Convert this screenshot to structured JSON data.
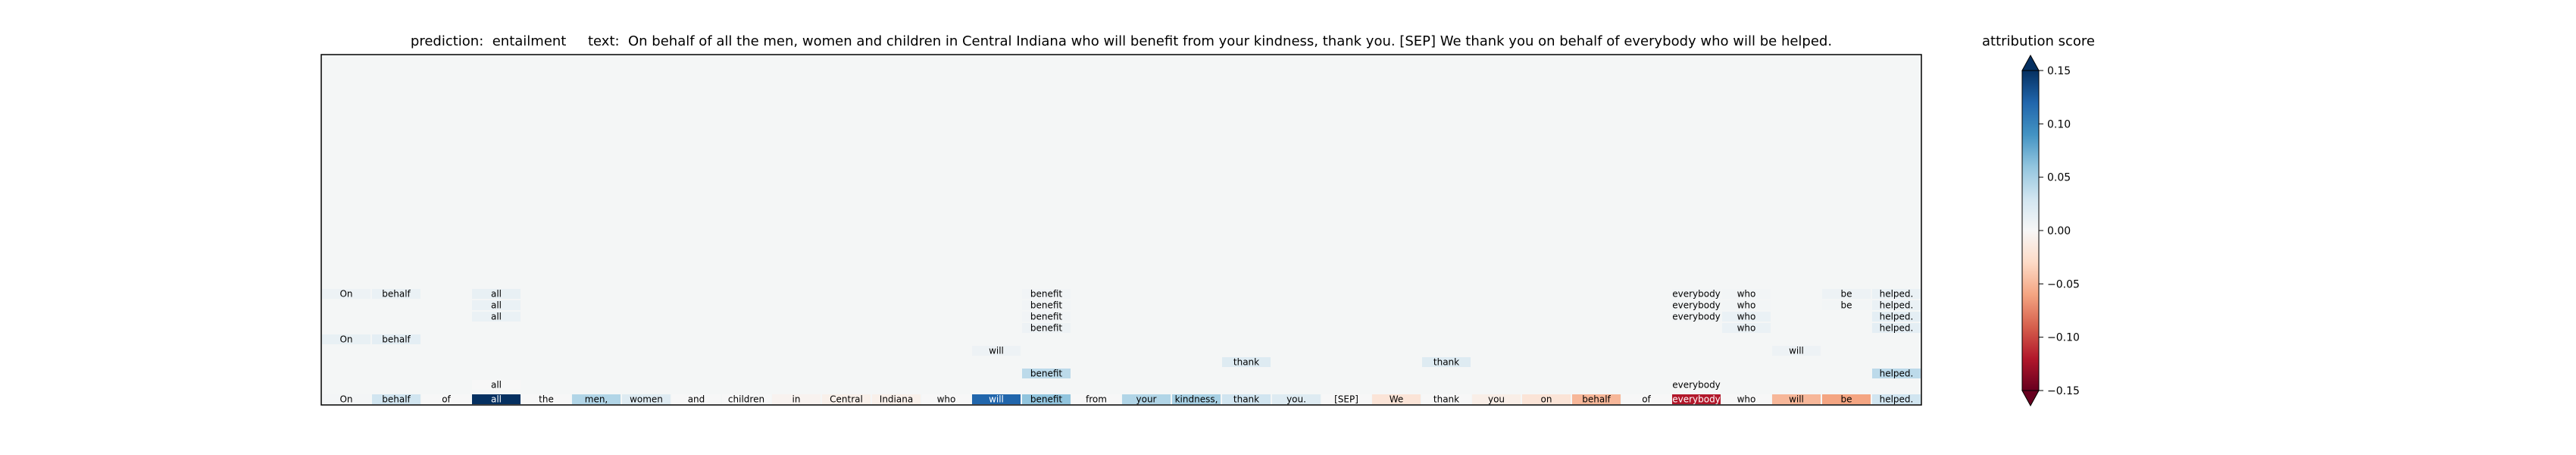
{
  "title": "prediction:  entailment     text:  On behalf of all the men, women and children in Central Indiana who will benefit from your kindness, thank you. [SEP] We thank you on behalf of everybody who will be helped.",
  "colorbar": {
    "label": "attribution score",
    "ticks": [
      "0.15",
      "0.10",
      "0.05",
      "0.00",
      "−0.05",
      "−0.10",
      "−0.15"
    ],
    "range": [
      -0.15,
      0.15
    ],
    "colormap": "RdBu"
  },
  "chart_data": {
    "type": "heatmap",
    "title": "prediction:  entailment     text:  On behalf of all the men, women and children in Central Indiana who will benefit from your kindness, thank you. [SEP] We thank you on behalf of everybody who will be helped.",
    "prediction": "entailment",
    "tokens": [
      "On",
      "behalf",
      "of",
      "all",
      "the",
      "men,",
      "women",
      "and",
      "children",
      "in",
      "Central",
      "Indiana",
      "who",
      "will",
      "benefit",
      "from",
      "your",
      "kindness,",
      "thank",
      "you.",
      "[SEP]",
      "We",
      "thank",
      "you",
      "on",
      "behalf",
      "of",
      "everybody",
      "who",
      "will",
      "be",
      "helped."
    ],
    "scores": [
      0.003,
      0.03,
      0.0,
      0.15,
      0.0,
      0.045,
      0.02,
      0.0,
      0.0,
      -0.005,
      -0.008,
      -0.008,
      0.0,
      0.12,
      0.06,
      0.0,
      0.045,
      0.05,
      0.03,
      0.02,
      0.0,
      -0.02,
      0.0,
      -0.01,
      -0.02,
      -0.05,
      0.0,
      -0.12,
      0.0,
      -0.05,
      -0.06,
      0.03
    ],
    "rows": 12,
    "grid": false,
    "layers": [
      {
        "row": 0,
        "col": 0,
        "text": "On",
        "score": 0.008
      },
      {
        "row": 0,
        "col": 1,
        "text": "behalf",
        "score": 0.01
      },
      {
        "row": 0,
        "col": 3,
        "text": "all",
        "score": 0.012
      },
      {
        "row": 0,
        "col": 14,
        "text": "benefit",
        "score": 0.005
      },
      {
        "row": 0,
        "col": 27,
        "text": "everybody",
        "score": 0.004
      },
      {
        "row": 0,
        "col": 28,
        "text": "who",
        "score": 0.004
      },
      {
        "row": 0,
        "col": 30,
        "text": "be",
        "score": 0.008
      },
      {
        "row": 0,
        "col": 31,
        "text": "helped.",
        "score": 0.01
      },
      {
        "row": 1,
        "col": 3,
        "text": "all",
        "score": 0.01
      },
      {
        "row": 1,
        "col": 14,
        "text": "benefit",
        "score": 0.005
      },
      {
        "row": 1,
        "col": 27,
        "text": "everybody",
        "score": 0.004
      },
      {
        "row": 1,
        "col": 28,
        "text": "who",
        "score": 0.004
      },
      {
        "row": 1,
        "col": 30,
        "text": "be",
        "score": 0.004
      },
      {
        "row": 1,
        "col": 31,
        "text": "helped.",
        "score": 0.01
      },
      {
        "row": 2,
        "col": 3,
        "text": "all",
        "score": 0.01
      },
      {
        "row": 2,
        "col": 14,
        "text": "benefit",
        "score": 0.005
      },
      {
        "row": 2,
        "col": 27,
        "text": "everybody",
        "score": 0.004
      },
      {
        "row": 2,
        "col": 28,
        "text": "who",
        "score": 0.01
      },
      {
        "row": 2,
        "col": 31,
        "text": "helped.",
        "score": 0.015
      },
      {
        "row": 3,
        "col": 14,
        "text": "benefit",
        "score": 0.008
      },
      {
        "row": 3,
        "col": 28,
        "text": "who",
        "score": 0.01
      },
      {
        "row": 3,
        "col": 31,
        "text": "helped.",
        "score": 0.015
      },
      {
        "row": 4,
        "col": 0,
        "text": "On",
        "score": 0.012
      },
      {
        "row": 4,
        "col": 1,
        "text": "behalf",
        "score": 0.015
      },
      {
        "row": 5,
        "col": 13,
        "text": "will",
        "score": 0.008
      },
      {
        "row": 5,
        "col": 29,
        "text": "will",
        "score": 0.008
      },
      {
        "row": 6,
        "col": 18,
        "text": "thank",
        "score": 0.02
      },
      {
        "row": 6,
        "col": 22,
        "text": "thank",
        "score": 0.02
      },
      {
        "row": 7,
        "col": 14,
        "text": "benefit",
        "score": 0.04
      },
      {
        "row": 7,
        "col": 31,
        "text": "helped.",
        "score": 0.04
      },
      {
        "row": 8,
        "col": 3,
        "text": "all",
        "score": 0.0
      },
      {
        "row": 8,
        "col": 27,
        "text": "everybody",
        "score": 0.0
      }
    ]
  }
}
